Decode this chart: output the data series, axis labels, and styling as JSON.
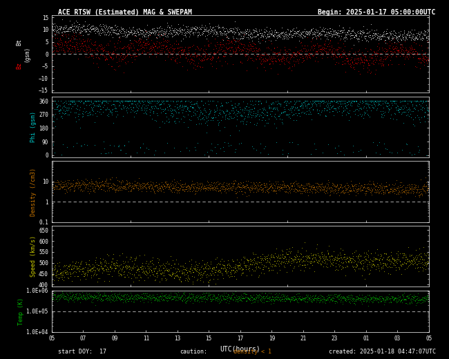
{
  "title_left": "ACE RTSW (Estimated) MAG & SWEPAM",
  "title_right": "Begin: 2025-01-17 05:00:00UTC",
  "bg_color": "#000000",
  "text_color": "#ffffff",
  "xticks": [
    5,
    7,
    9,
    11,
    13,
    15,
    17,
    19,
    21,
    23,
    1,
    3,
    5
  ],
  "xlabel": "UTC(hours)",
  "footer_left": "start DOY:  17",
  "footer_caution": "caution:",
  "footer_density": "density < 1",
  "footer_right": "created: 2025-01-18 04:47:07UTC",
  "panel1_ylabel": "Bt  Bz (gsm)",
  "panel1_yticks": [
    -15,
    -10,
    -5,
    0,
    5,
    10,
    15
  ],
  "panel1_ylim": [
    -16,
    16
  ],
  "panel2_ylabel": "Phi (gsm)",
  "panel2_yticks": [
    0,
    90,
    180,
    270,
    360
  ],
  "panel2_ylim": [
    -15,
    390
  ],
  "panel3_ylabel": "Density (/cm3)",
  "panel3_ylim_log": [
    0.1,
    100.0
  ],
  "panel3_ytick_labels": [
    "0.1",
    "1.0",
    "10.0"
  ],
  "panel4_ylabel": "Speed (km/s)",
  "panel4_yticks": [
    400,
    450,
    500,
    550,
    600,
    650
  ],
  "panel4_ylim": [
    390,
    670
  ],
  "panel5_ylabel": "Temp (K)",
  "panel5_ylim_log": [
    10000.0,
    1000000.0
  ],
  "panel5_ytick_labels": [
    "1.0E+04",
    "1.0E+05",
    "1.0E+06"
  ],
  "color_bt": "#ffffff",
  "color_bz": "#ff0000",
  "color_phi": "#00cccc",
  "color_density": "#cc7700",
  "color_speed": "#cccc00",
  "color_temp": "#00bb00",
  "color_dashed": "#aaaaaa",
  "dot_size": 1.2,
  "grid_color": "#555555",
  "height_ratios": [
    1.4,
    1.1,
    1.1,
    1.1,
    0.75
  ]
}
